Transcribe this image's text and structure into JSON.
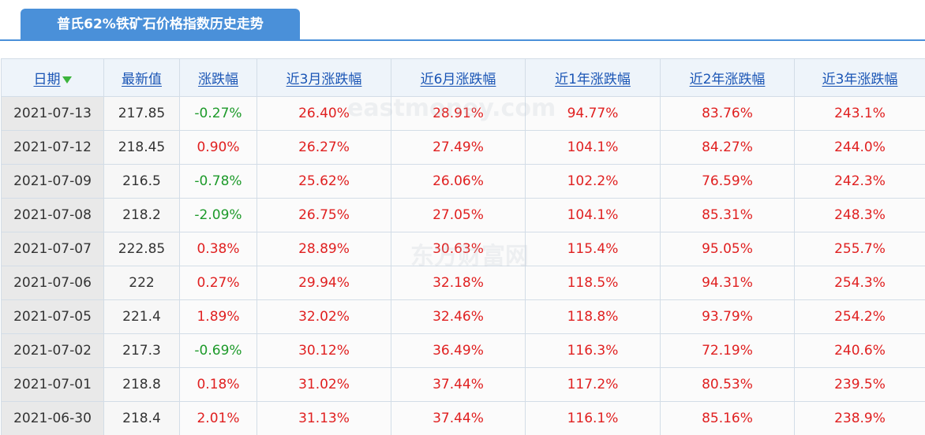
{
  "tab": {
    "title": "普氏62%铁矿石价格指数历史走势"
  },
  "table": {
    "headers": [
      "日期",
      "最新值",
      "涨跌幅",
      "近3月涨跌幅",
      "近6月涨跌幅",
      "近1年涨跌幅",
      "近2年涨跌幅",
      "近3年涨跌幅"
    ],
    "sort_icon": "down-arrow-icon",
    "colors": {
      "up": "#e02020",
      "down": "#1d9a2a",
      "header_text": "#1a55b5",
      "tab_bg": "#4a90d9"
    },
    "rows": [
      {
        "date": "2021-07-13",
        "latest": "217.85",
        "change": "-0.27%",
        "m3": "26.40%",
        "m6": "28.91%",
        "y1": "94.77%",
        "y2": "83.76%",
        "y3": "243.1%"
      },
      {
        "date": "2021-07-12",
        "latest": "218.45",
        "change": "0.90%",
        "m3": "26.27%",
        "m6": "27.49%",
        "y1": "104.1%",
        "y2": "84.27%",
        "y3": "244.0%"
      },
      {
        "date": "2021-07-09",
        "latest": "216.5",
        "change": "-0.78%",
        "m3": "25.62%",
        "m6": "26.06%",
        "y1": "102.2%",
        "y2": "76.59%",
        "y3": "242.3%"
      },
      {
        "date": "2021-07-08",
        "latest": "218.2",
        "change": "-2.09%",
        "m3": "26.75%",
        "m6": "27.05%",
        "y1": "104.1%",
        "y2": "85.31%",
        "y3": "248.3%"
      },
      {
        "date": "2021-07-07",
        "latest": "222.85",
        "change": "0.38%",
        "m3": "28.89%",
        "m6": "30.63%",
        "y1": "115.4%",
        "y2": "95.05%",
        "y3": "255.7%"
      },
      {
        "date": "2021-07-06",
        "latest": "222",
        "change": "0.27%",
        "m3": "29.94%",
        "m6": "32.18%",
        "y1": "118.5%",
        "y2": "94.31%",
        "y3": "254.3%"
      },
      {
        "date": "2021-07-05",
        "latest": "221.4",
        "change": "1.89%",
        "m3": "32.02%",
        "m6": "32.46%",
        "y1": "118.8%",
        "y2": "93.79%",
        "y3": "254.2%"
      },
      {
        "date": "2021-07-02",
        "latest": "217.3",
        "change": "-0.69%",
        "m3": "30.12%",
        "m6": "36.49%",
        "y1": "116.3%",
        "y2": "72.19%",
        "y3": "240.6%"
      },
      {
        "date": "2021-07-01",
        "latest": "218.8",
        "change": "0.18%",
        "m3": "31.02%",
        "m6": "37.44%",
        "y1": "117.2%",
        "y2": "80.53%",
        "y3": "239.5%"
      },
      {
        "date": "2021-06-30",
        "latest": "218.4",
        "change": "2.01%",
        "m3": "31.13%",
        "m6": "37.44%",
        "y1": "116.1%",
        "y2": "85.16%",
        "y3": "238.9%"
      }
    ]
  },
  "watermarks": [
    "eastmoney.com",
    "东方财富网"
  ]
}
